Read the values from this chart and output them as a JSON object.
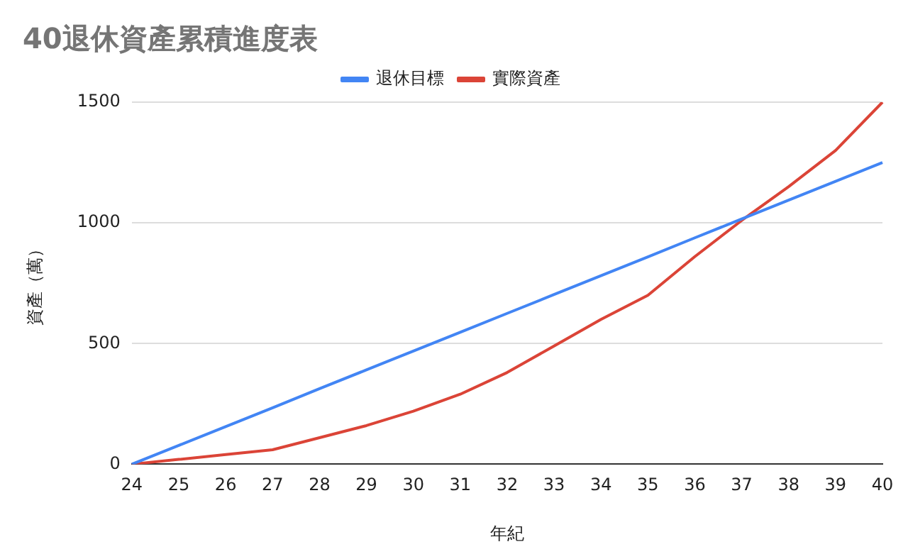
{
  "chart_data": {
    "type": "line",
    "title": "40退休資產累積進度表",
    "xlabel": "年紀",
    "ylabel": "資產（萬）",
    "categories": [
      "24",
      "25",
      "26",
      "27",
      "28",
      "29",
      "30",
      "31",
      "32",
      "33",
      "34",
      "35",
      "36",
      "37",
      "38",
      "39",
      "40"
    ],
    "series": [
      {
        "name": "退休目標",
        "color": "#4285f4",
        "values": [
          0,
          78,
          156,
          234,
          313,
          391,
          469,
          547,
          625,
          703,
          781,
          859,
          938,
          1016,
          1094,
          1172,
          1250
        ]
      },
      {
        "name": "實際資產",
        "color": "#db4437",
        "values": [
          0,
          20,
          40,
          60,
          110,
          160,
          220,
          290,
          380,
          490,
          600,
          700,
          860,
          1010,
          1150,
          1300,
          1500
        ]
      }
    ],
    "ylim": [
      0,
      1500
    ],
    "yticks": [
      0,
      500,
      1000,
      1500
    ],
    "grid": "y",
    "legend": "top",
    "marker": "none",
    "line_style": "solid"
  }
}
